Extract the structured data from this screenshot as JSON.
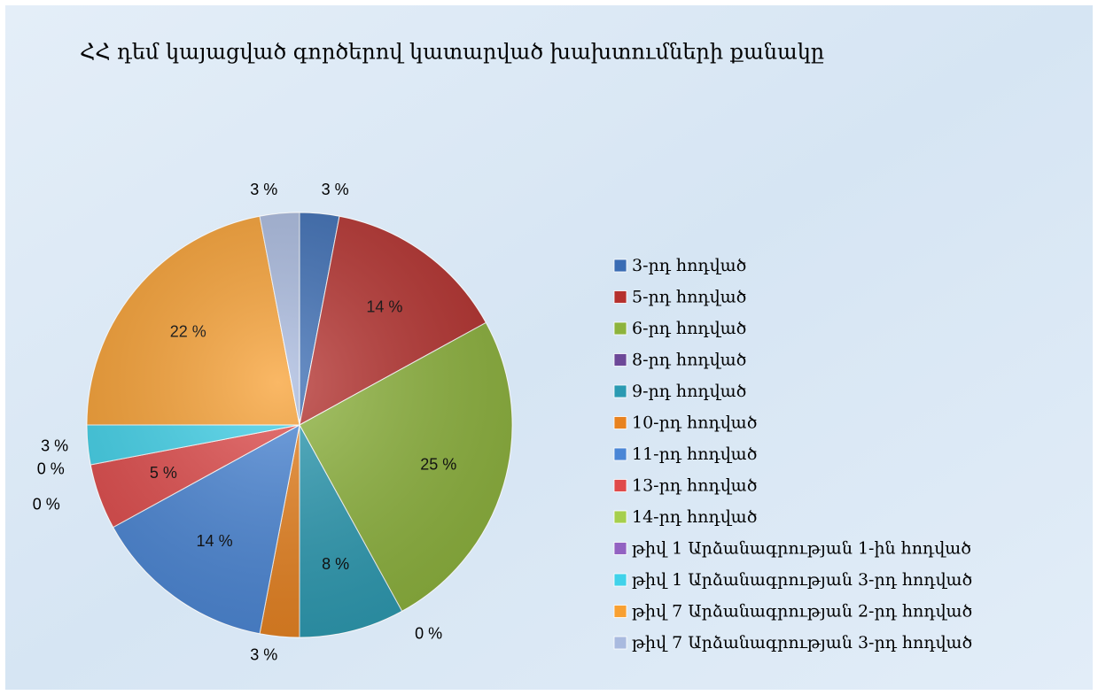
{
  "chart_data": {
    "type": "pie",
    "title": "ՀՀ դեմ կայացված գործերով կատարված խախտումների քանակը",
    "categories": [
      "3-րդ հոդված",
      "5-րդ հոդված",
      "6-րդ հոդված",
      "8-րդ հոդված",
      "9-րդ հոդված",
      "10-րդ հոդված",
      "11-րդ հոդված",
      "13-րդ հոդված",
      "14-րդ հոդված",
      "թիվ 1 Արձանագրության 1-ին հոդված",
      "թիվ 1 Արձանագրության 3-րդ հոդված",
      "թիվ 7 Արձանագրության 2-րդ հոդված",
      "թիվ 7 Արձանագրության 3-րդ հոդված"
    ],
    "values": [
      3,
      14,
      25,
      0,
      8,
      3,
      14,
      5,
      0,
      0,
      3,
      22,
      3
    ],
    "value_labels": [
      "3 %",
      "14 %",
      "25 %",
      "0 %",
      "8 %",
      "3 %",
      "14 %",
      "5 %",
      "0 %",
      "0 %",
      "3 %",
      "22 %",
      "3 %"
    ],
    "colors": [
      "#3a6cb4",
      "#b5302d",
      "#8db33c",
      "#6c4898",
      "#2b9ab2",
      "#e8821f",
      "#4a86d6",
      "#e04a4a",
      "#a6cf4c",
      "#9262c2",
      "#40d2ea",
      "#f8a032",
      "#a9badf"
    ],
    "legend": "right"
  }
}
